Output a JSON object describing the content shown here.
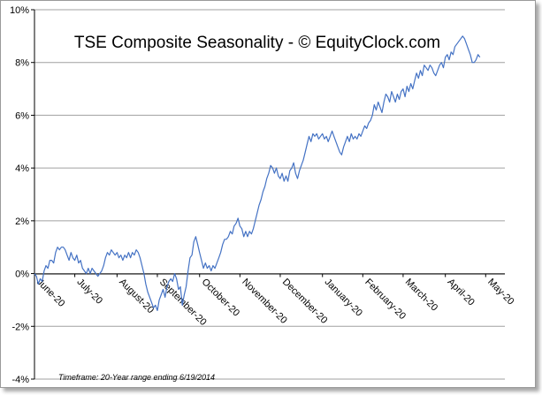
{
  "chart_data": {
    "type": "line",
    "title": "TSE Composite Seasonality - © EquityClock.com",
    "footnote": "Timeframe: 20-Year range ending 6/19/2014",
    "xlabel": "",
    "ylabel": "",
    "ylim": [
      -4,
      10
    ],
    "y_ticks": [
      "-4%",
      "-2%",
      "0%",
      "2%",
      "4%",
      "6%",
      "8%",
      "10%"
    ],
    "y_tick_values": [
      -4,
      -2,
      0,
      2,
      4,
      6,
      8,
      10
    ],
    "x_range": [
      0,
      245
    ],
    "x_ticks": [
      {
        "label": "June-20",
        "x": 0
      },
      {
        "label": "July-20",
        "x": 21
      },
      {
        "label": "August-20",
        "x": 43
      },
      {
        "label": "September-20",
        "x": 64
      },
      {
        "label": "October-20",
        "x": 86
      },
      {
        "label": "November-20",
        "x": 107
      },
      {
        "label": "December-20",
        "x": 128
      },
      {
        "label": "January-20",
        "x": 150
      },
      {
        "label": "February-20",
        "x": 171
      },
      {
        "label": "March-20",
        "x": 192
      },
      {
        "label": "April-20",
        "x": 214
      },
      {
        "label": "May-20",
        "x": 235
      }
    ],
    "grid": true,
    "line_color": "#4472C4",
    "series": [
      {
        "values": [
          [
            0,
            0.0
          ],
          [
            1,
            -0.1
          ],
          [
            2,
            -0.4
          ],
          [
            3,
            -0.2
          ],
          [
            4,
            -0.3
          ],
          [
            5,
            0.1
          ],
          [
            6,
            0.3
          ],
          [
            7,
            0.2
          ],
          [
            8,
            0.5
          ],
          [
            9,
            0.5
          ],
          [
            10,
            0.4
          ],
          [
            11,
            0.8
          ],
          [
            12,
            1.0
          ],
          [
            13,
            0.9
          ],
          [
            14,
            1.0
          ],
          [
            15,
            1.0
          ],
          [
            16,
            0.9
          ],
          [
            17,
            0.7
          ],
          [
            18,
            0.5
          ],
          [
            19,
            0.8
          ],
          [
            20,
            0.6
          ],
          [
            21,
            0.5
          ],
          [
            22,
            0.7
          ],
          [
            23,
            0.4
          ],
          [
            24,
            0.5
          ],
          [
            25,
            0.2
          ],
          [
            26,
            0.1
          ],
          [
            27,
            0.0
          ],
          [
            28,
            0.2
          ],
          [
            29,
            0.0
          ],
          [
            30,
            0.2
          ],
          [
            31,
            0.1
          ],
          [
            32,
            0.0
          ],
          [
            33,
            -0.1
          ],
          [
            34,
            0.0
          ],
          [
            35,
            0.1
          ],
          [
            36,
            0.3
          ],
          [
            37,
            0.6
          ],
          [
            38,
            0.8
          ],
          [
            39,
            0.7
          ],
          [
            40,
            0.9
          ],
          [
            41,
            0.8
          ],
          [
            42,
            0.7
          ],
          [
            43,
            0.8
          ],
          [
            44,
            0.6
          ],
          [
            45,
            0.7
          ],
          [
            46,
            0.5
          ],
          [
            47,
            0.7
          ],
          [
            48,
            0.6
          ],
          [
            49,
            0.8
          ],
          [
            50,
            0.6
          ],
          [
            51,
            0.8
          ],
          [
            52,
            0.7
          ],
          [
            53,
            0.9
          ],
          [
            54,
            0.8
          ],
          [
            55,
            0.6
          ],
          [
            56,
            0.3
          ],
          [
            57,
            0.0
          ],
          [
            58,
            -0.4
          ],
          [
            59,
            -0.7
          ],
          [
            60,
            -0.9
          ],
          [
            61,
            -1.1
          ],
          [
            62,
            -1.3
          ],
          [
            63,
            -1.2
          ],
          [
            64,
            -1.4
          ],
          [
            65,
            -1.0
          ],
          [
            66,
            -0.8
          ],
          [
            67,
            -0.6
          ],
          [
            68,
            -0.9
          ],
          [
            69,
            -0.5
          ],
          [
            70,
            -0.3
          ],
          [
            71,
            -0.2
          ],
          [
            72,
            -0.3
          ],
          [
            73,
            0.0
          ],
          [
            74,
            -0.2
          ],
          [
            75,
            -0.6
          ],
          [
            76,
            -0.5
          ],
          [
            77,
            -1.2
          ],
          [
            78,
            -0.8
          ],
          [
            79,
            -0.5
          ],
          [
            80,
            0.1
          ],
          [
            81,
            0.6
          ],
          [
            82,
            0.7
          ],
          [
            83,
            1.2
          ],
          [
            84,
            1.4
          ],
          [
            85,
            1.1
          ],
          [
            86,
            0.8
          ],
          [
            87,
            0.5
          ],
          [
            88,
            0.2
          ],
          [
            89,
            0.4
          ],
          [
            90,
            0.2
          ],
          [
            91,
            0.3
          ],
          [
            92,
            0.1
          ],
          [
            93,
            0.3
          ],
          [
            94,
            0.2
          ],
          [
            95,
            0.4
          ],
          [
            96,
            0.6
          ],
          [
            97,
            0.8
          ],
          [
            98,
            1.1
          ],
          [
            99,
            1.3
          ],
          [
            100,
            1.3
          ],
          [
            101,
            1.4
          ],
          [
            102,
            1.6
          ],
          [
            103,
            1.5
          ],
          [
            104,
            1.8
          ],
          [
            105,
            1.9
          ],
          [
            106,
            2.1
          ],
          [
            107,
            1.8
          ],
          [
            108,
            1.7
          ],
          [
            109,
            1.4
          ],
          [
            110,
            1.6
          ],
          [
            111,
            1.4
          ],
          [
            112,
            1.6
          ],
          [
            113,
            1.5
          ],
          [
            114,
            1.7
          ],
          [
            115,
            2.0
          ],
          [
            116,
            2.3
          ],
          [
            117,
            2.6
          ],
          [
            118,
            2.8
          ],
          [
            119,
            3.1
          ],
          [
            120,
            3.3
          ],
          [
            121,
            3.6
          ],
          [
            122,
            3.8
          ],
          [
            123,
            4.1
          ],
          [
            124,
            4.0
          ],
          [
            125,
            3.8
          ],
          [
            126,
            4.0
          ],
          [
            127,
            3.7
          ],
          [
            128,
            3.6
          ],
          [
            129,
            3.8
          ],
          [
            130,
            3.5
          ],
          [
            131,
            3.7
          ],
          [
            132,
            3.5
          ],
          [
            133,
            3.9
          ],
          [
            134,
            4.0
          ],
          [
            135,
            4.2
          ],
          [
            136,
            3.8
          ],
          [
            137,
            3.6
          ],
          [
            138,
            3.9
          ],
          [
            139,
            4.1
          ],
          [
            140,
            4.3
          ],
          [
            141,
            4.6
          ],
          [
            142,
            4.9
          ],
          [
            143,
            5.2
          ],
          [
            144,
            5.0
          ],
          [
            145,
            5.3
          ],
          [
            146,
            5.2
          ],
          [
            147,
            5.3
          ],
          [
            148,
            5.1
          ],
          [
            149,
            5.2
          ],
          [
            150,
            5.3
          ],
          [
            151,
            5.1
          ],
          [
            152,
            5.2
          ],
          [
            153,
            5.0
          ],
          [
            154,
            5.2
          ],
          [
            155,
            5.4
          ],
          [
            156,
            5.2
          ],
          [
            157,
            5.0
          ],
          [
            158,
            4.8
          ],
          [
            159,
            4.6
          ],
          [
            160,
            4.5
          ],
          [
            161,
            4.8
          ],
          [
            162,
            5.0
          ],
          [
            163,
            5.2
          ],
          [
            164,
            5.0
          ],
          [
            165,
            5.3
          ],
          [
            166,
            5.1
          ],
          [
            167,
            5.2
          ],
          [
            168,
            5.1
          ],
          [
            169,
            5.3
          ],
          [
            170,
            5.2
          ],
          [
            171,
            5.4
          ],
          [
            172,
            5.6
          ],
          [
            173,
            5.5
          ],
          [
            174,
            5.7
          ],
          [
            175,
            5.8
          ],
          [
            176,
            6.0
          ],
          [
            177,
            6.4
          ],
          [
            178,
            6.2
          ],
          [
            179,
            6.5
          ],
          [
            180,
            6.3
          ],
          [
            181,
            6.1
          ],
          [
            182,
            6.5
          ],
          [
            183,
            6.8
          ],
          [
            184,
            6.7
          ],
          [
            185,
            6.5
          ],
          [
            186,
            6.9
          ],
          [
            187,
            6.7
          ],
          [
            188,
            6.5
          ],
          [
            189,
            6.8
          ],
          [
            190,
            6.6
          ],
          [
            191,
            6.9
          ],
          [
            192,
            7.0
          ],
          [
            193,
            6.7
          ],
          [
            194,
            7.1
          ],
          [
            195,
            6.9
          ],
          [
            196,
            7.2
          ],
          [
            197,
            7.0
          ],
          [
            198,
            7.3
          ],
          [
            199,
            7.6
          ],
          [
            200,
            7.4
          ],
          [
            201,
            7.7
          ],
          [
            202,
            7.5
          ],
          [
            203,
            7.9
          ],
          [
            204,
            7.8
          ],
          [
            205,
            7.7
          ],
          [
            206,
            7.9
          ],
          [
            207,
            7.8
          ],
          [
            208,
            7.6
          ],
          [
            209,
            7.5
          ],
          [
            210,
            7.7
          ],
          [
            211,
            7.9
          ],
          [
            212,
            8.0
          ],
          [
            213,
            7.8
          ],
          [
            214,
            8.2
          ],
          [
            215,
            8.3
          ],
          [
            216,
            8.1
          ],
          [
            217,
            8.4
          ],
          [
            218,
            8.3
          ],
          [
            219,
            8.6
          ],
          [
            220,
            8.7
          ],
          [
            221,
            8.8
          ],
          [
            222,
            8.9
          ],
          [
            223,
            9.0
          ],
          [
            224,
            8.9
          ],
          [
            225,
            8.7
          ],
          [
            226,
            8.5
          ],
          [
            227,
            8.3
          ],
          [
            228,
            8.0
          ],
          [
            229,
            8.0
          ],
          [
            230,
            8.1
          ],
          [
            231,
            8.3
          ],
          [
            232,
            8.2
          ]
        ]
      }
    ]
  }
}
